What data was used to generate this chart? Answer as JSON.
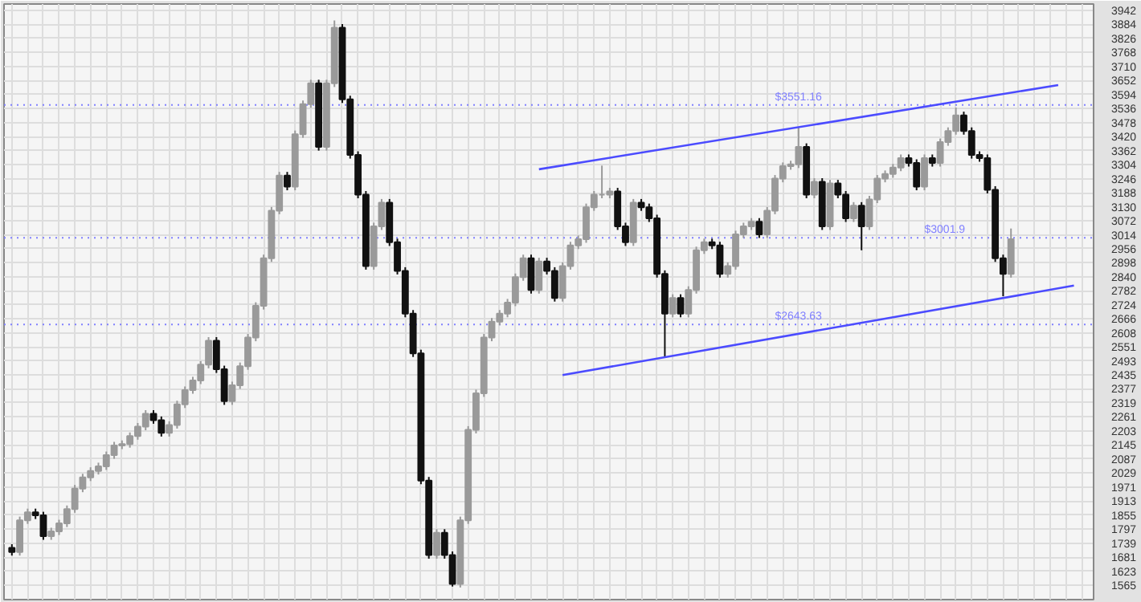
{
  "chart_data": {
    "type": "candlestick",
    "categories": [
      null,
      null,
      null,
      null,
      null,
      null,
      null,
      null,
      null,
      null,
      null,
      null,
      null,
      null,
      null,
      null,
      null,
      null,
      null,
      null,
      null,
      null,
      null,
      null,
      null,
      null,
      null,
      null,
      null,
      null,
      null,
      null,
      null,
      null,
      null,
      null,
      null,
      null,
      null,
      null,
      null,
      null,
      null,
      null,
      null,
      null,
      null,
      null,
      null,
      null,
      null,
      null,
      null,
      null,
      null,
      null,
      null,
      null,
      null,
      null,
      null,
      null,
      null,
      null,
      null,
      null,
      null,
      null,
      null,
      null,
      null,
      null,
      null,
      null,
      null,
      null,
      null,
      null,
      null,
      null,
      null,
      null,
      null,
      null,
      null,
      null,
      null,
      null,
      null,
      null,
      null,
      null,
      null,
      null,
      null,
      null,
      null,
      null,
      null,
      null,
      null,
      null,
      null,
      null,
      null,
      null,
      null,
      null,
      null,
      null,
      null,
      null,
      null,
      null,
      null,
      null,
      null,
      null,
      null,
      null,
      null,
      null,
      null,
      null,
      null,
      null,
      null,
      null,
      null,
      null,
      null,
      null,
      null,
      null,
      null,
      null,
      null,
      null
    ],
    "ohlc": [
      [
        1720,
        1735,
        1688,
        1703
      ],
      [
        1703,
        1849,
        1688,
        1834
      ],
      [
        1834,
        1882,
        1819,
        1867
      ],
      [
        1867,
        1882,
        1839,
        1854
      ],
      [
        1854,
        1869,
        1753,
        1768
      ],
      [
        1768,
        1803,
        1753,
        1788
      ],
      [
        1788,
        1836,
        1773,
        1821
      ],
      [
        1821,
        1895,
        1806,
        1880
      ],
      [
        1880,
        1980,
        1865,
        1965
      ],
      [
        1965,
        2026,
        1950,
        2011
      ],
      [
        2011,
        2053,
        1996,
        2038
      ],
      [
        2038,
        2072,
        2023,
        2057
      ],
      [
        2057,
        2118,
        2042,
        2103
      ],
      [
        2103,
        2158,
        2088,
        2143
      ],
      [
        2143,
        2164,
        2128,
        2149
      ],
      [
        2149,
        2197,
        2134,
        2182
      ],
      [
        2182,
        2236,
        2167,
        2221
      ],
      [
        2221,
        2289,
        2206,
        2274
      ],
      [
        2274,
        2289,
        2233,
        2248
      ],
      [
        2248,
        2263,
        2180,
        2195
      ],
      [
        2195,
        2243,
        2180,
        2228
      ],
      [
        2228,
        2328,
        2213,
        2313
      ],
      [
        2313,
        2387,
        2298,
        2372
      ],
      [
        2372,
        2427,
        2357,
        2412
      ],
      [
        2412,
        2492,
        2397,
        2477
      ],
      [
        2477,
        2591,
        2462,
        2576
      ],
      [
        2576,
        2591,
        2443,
        2458
      ],
      [
        2458,
        2473,
        2311,
        2326
      ],
      [
        2326,
        2407,
        2311,
        2392
      ],
      [
        2392,
        2486,
        2377,
        2471
      ],
      [
        2471,
        2604,
        2456,
        2589
      ],
      [
        2589,
        2735,
        2574,
        2720
      ],
      [
        2720,
        2932,
        2705,
        2917
      ],
      [
        2917,
        3129,
        2902,
        3114
      ],
      [
        3114,
        3274,
        3099,
        3259
      ],
      [
        3259,
        3274,
        3198,
        3213
      ],
      [
        3213,
        3445,
        3198,
        3430
      ],
      [
        3430,
        3569,
        3415,
        3554
      ],
      [
        3554,
        3655,
        3539,
        3640
      ],
      [
        3640,
        3655,
        3362,
        3377
      ],
      [
        3377,
        3655,
        3362,
        3640
      ],
      [
        3640,
        3900,
        3625,
        3870
      ],
      [
        3870,
        3885,
        3559,
        3574
      ],
      [
        3574,
        3589,
        3329,
        3344
      ],
      [
        3344,
        3359,
        3165,
        3180
      ],
      [
        3180,
        3195,
        2870,
        2885
      ],
      [
        2885,
        3064,
        2870,
        3049
      ],
      [
        3049,
        3162,
        3034,
        3147
      ],
      [
        3147,
        3162,
        2968,
        2983
      ],
      [
        2983,
        2998,
        2850,
        2865
      ],
      [
        2865,
        2880,
        2673,
        2688
      ],
      [
        2688,
        2703,
        2509,
        2524
      ],
      [
        2524,
        2539,
        1983,
        1998
      ],
      [
        1998,
        2013,
        1675,
        1690
      ],
      [
        1690,
        1797,
        1675,
        1782
      ],
      [
        1782,
        1797,
        1675,
        1690
      ],
      [
        1690,
        1705,
        1560,
        1571
      ],
      [
        1571,
        1849,
        1556,
        1834
      ],
      [
        1834,
        2223,
        1819,
        2208
      ],
      [
        2208,
        2374,
        2193,
        2359
      ],
      [
        2359,
        2604,
        2344,
        2589
      ],
      [
        2589,
        2670,
        2574,
        2655
      ],
      [
        2655,
        2703,
        2640,
        2688
      ],
      [
        2688,
        2749,
        2673,
        2734
      ],
      [
        2734,
        2854,
        2719,
        2839
      ],
      [
        2839,
        2932,
        2824,
        2917
      ],
      [
        2917,
        2932,
        2771,
        2786
      ],
      [
        2786,
        2919,
        2771,
        2904
      ],
      [
        2904,
        2919,
        2850,
        2865
      ],
      [
        2865,
        2880,
        2738,
        2753
      ],
      [
        2753,
        2900,
        2738,
        2885
      ],
      [
        2885,
        2985,
        2870,
        2970
      ],
      [
        2970,
        3011,
        2955,
        2996
      ],
      [
        2996,
        3143,
        2981,
        3128
      ],
      [
        3128,
        3195,
        3113,
        3180
      ],
      [
        3180,
        3300,
        3165,
        3180
      ],
      [
        3180,
        3208,
        3165,
        3193
      ],
      [
        3193,
        3208,
        3034,
        3049
      ],
      [
        3049,
        3064,
        2968,
        2983
      ],
      [
        2983,
        3162,
        2968,
        3147
      ],
      [
        3147,
        3162,
        3113,
        3128
      ],
      [
        3128,
        3143,
        3067,
        3082
      ],
      [
        3082,
        3097,
        2837,
        2852
      ],
      [
        2852,
        2867,
        2510,
        2688
      ],
      [
        2688,
        2768,
        2673,
        2753
      ],
      [
        2753,
        2768,
        2673,
        2688
      ],
      [
        2688,
        2801,
        2673,
        2786
      ],
      [
        2786,
        2965,
        2771,
        2950
      ],
      [
        2950,
        2998,
        2935,
        2983
      ],
      [
        2983,
        2998,
        2955,
        2970
      ],
      [
        2970,
        2985,
        2837,
        2852
      ],
      [
        2852,
        2900,
        2837,
        2885
      ],
      [
        2885,
        3031,
        2870,
        3016
      ],
      [
        3016,
        3064,
        3001,
        3049
      ],
      [
        3049,
        3083,
        3034,
        3068
      ],
      [
        3068,
        3083,
        3001,
        3016
      ],
      [
        3016,
        3129,
        3001,
        3114
      ],
      [
        3114,
        3261,
        3099,
        3246
      ],
      [
        3246,
        3313,
        3231,
        3298
      ],
      [
        3298,
        3320,
        3283,
        3305
      ],
      [
        3305,
        3460,
        3290,
        3377
      ],
      [
        3377,
        3392,
        3165,
        3180
      ],
      [
        3180,
        3248,
        3165,
        3233
      ],
      [
        3233,
        3248,
        3034,
        3049
      ],
      [
        3049,
        3241,
        3034,
        3226
      ],
      [
        3226,
        3241,
        3165,
        3180
      ],
      [
        3180,
        3195,
        3067,
        3082
      ],
      [
        3082,
        3149,
        3067,
        3134
      ],
      [
        3134,
        3149,
        2950,
        3049
      ],
      [
        3049,
        3175,
        3034,
        3160
      ],
      [
        3160,
        3261,
        3145,
        3246
      ],
      [
        3246,
        3280,
        3231,
        3265
      ],
      [
        3265,
        3307,
        3250,
        3292
      ],
      [
        3292,
        3346,
        3277,
        3331
      ],
      [
        3331,
        3346,
        3296,
        3311
      ],
      [
        3311,
        3326,
        3198,
        3213
      ],
      [
        3213,
        3346,
        3198,
        3331
      ],
      [
        3331,
        3346,
        3296,
        3311
      ],
      [
        3311,
        3412,
        3296,
        3397
      ],
      [
        3397,
        3458,
        3382,
        3443
      ],
      [
        3443,
        3540,
        3428,
        3508
      ],
      [
        3508,
        3523,
        3428,
        3443
      ],
      [
        3443,
        3458,
        3329,
        3344
      ],
      [
        3344,
        3359,
        3316,
        3331
      ],
      [
        3331,
        3346,
        3185,
        3200
      ],
      [
        3200,
        3215,
        2902,
        2917
      ],
      [
        2917,
        2932,
        2760,
        2852
      ],
      [
        2852,
        3040,
        2837,
        2996
      ],
      null,
      null,
      null,
      null,
      null,
      null,
      null,
      null,
      null,
      null
    ],
    "series": [
      {
        "type": "line",
        "color": "#4b4bff",
        "values": [
          null,
          null,
          null,
          null,
          null,
          null,
          null,
          null,
          null,
          null,
          null,
          null,
          null,
          null,
          null,
          null,
          null,
          null,
          null,
          null,
          null,
          null,
          null,
          null,
          null,
          null,
          null,
          null,
          null,
          null,
          null,
          null,
          null,
          null,
          null,
          null,
          null,
          null,
          null,
          null,
          null,
          null,
          null,
          null,
          null,
          null,
          null,
          null,
          null,
          null,
          null,
          null,
          null,
          null,
          null,
          null,
          null,
          null,
          null,
          null,
          null,
          null,
          null,
          null,
          null,
          null,
          null,
          3285,
          null,
          null,
          null,
          null,
          null,
          null,
          null,
          null,
          null,
          null,
          null,
          null,
          null,
          null,
          null,
          null,
          null,
          null,
          null,
          null,
          null,
          null,
          null,
          null,
          null,
          null,
          null,
          null,
          null,
          null,
          null,
          null,
          null,
          null,
          null,
          null,
          null,
          null,
          null,
          null,
          null,
          null,
          null,
          null,
          null,
          null,
          null,
          null,
          null,
          null,
          null,
          null,
          null,
          null,
          null,
          null,
          null,
          null,
          null,
          null,
          null,
          null,
          null,
          null,
          null,
          3633,
          null,
          null,
          null,
          null
        ]
      },
      {
        "type": "line",
        "color": "#4b4bff",
        "values": [
          null,
          null,
          null,
          null,
          null,
          null,
          null,
          null,
          null,
          null,
          null,
          null,
          null,
          null,
          null,
          null,
          null,
          null,
          null,
          null,
          null,
          null,
          null,
          null,
          null,
          null,
          null,
          null,
          null,
          null,
          null,
          null,
          null,
          null,
          null,
          null,
          null,
          null,
          null,
          null,
          null,
          null,
          null,
          null,
          null,
          null,
          null,
          null,
          null,
          null,
          null,
          null,
          null,
          null,
          null,
          null,
          null,
          null,
          null,
          null,
          null,
          null,
          null,
          null,
          null,
          null,
          null,
          null,
          null,
          null,
          2434,
          null,
          null,
          null,
          null,
          null,
          null,
          null,
          null,
          null,
          null,
          null,
          null,
          null,
          null,
          null,
          null,
          null,
          null,
          null,
          null,
          null,
          null,
          null,
          null,
          null,
          null,
          null,
          null,
          null,
          null,
          null,
          null,
          null,
          null,
          null,
          null,
          null,
          null,
          null,
          null,
          null,
          null,
          null,
          null,
          null,
          null,
          null,
          null,
          null,
          null,
          null,
          null,
          null,
          null,
          null,
          null,
          null,
          null,
          null,
          null,
          null,
          null,
          null,
          null,
          2804,
          null,
          null
        ]
      }
    ],
    "ylim": [
      1506,
      3968
    ],
    "yticks": [
      1565,
      1623,
      1681,
      1739,
      1797,
      1855,
      1913,
      1971,
      2029,
      2087,
      2145,
      2203,
      2261,
      2319,
      2377,
      2435,
      2493,
      2551,
      2608,
      2666,
      2724,
      2782,
      2840,
      2898,
      2956,
      3014,
      3072,
      3130,
      3188,
      3246,
      3304,
      3362,
      3420,
      3478,
      3536,
      3594,
      3652,
      3710,
      3768,
      3826,
      3884,
      3942
    ],
    "ref_lines": [
      {
        "axis": "y",
        "value": 3551.16,
        "label": "$3551.16",
        "color": "#8080ff",
        "line_style": "dotted"
      },
      {
        "axis": "y",
        "value": 3001.9,
        "label": "$3001.9",
        "color": "#8080ff",
        "line_style": "dotted"
      },
      {
        "axis": "y",
        "value": 2643.63,
        "label": "$2643.63",
        "color": "#8080ff",
        "line_style": "dotted"
      }
    ],
    "grid": true,
    "tick_labels": "y"
  }
}
